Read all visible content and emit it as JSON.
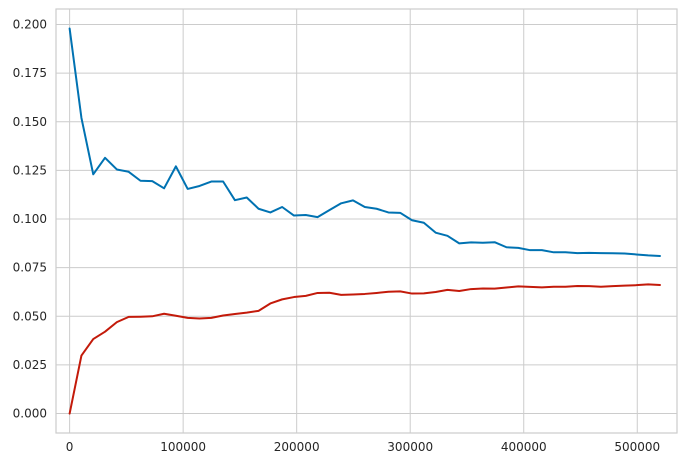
{
  "chart_data": {
    "type": "line",
    "title": "",
    "xlabel": "",
    "ylabel": "",
    "xlim": [
      -12000,
      535000
    ],
    "ylim": [
      -0.01,
      0.208
    ],
    "grid": true,
    "legend": "none",
    "x_ticks": [
      0,
      100000,
      200000,
      300000,
      400000,
      500000
    ],
    "x_tick_labels": [
      "0",
      "100000",
      "200000",
      "300000",
      "400000",
      "500000"
    ],
    "y_ticks": [
      0.0,
      0.025,
      0.05,
      0.075,
      0.1,
      0.125,
      0.15,
      0.175,
      0.2
    ],
    "y_tick_labels": [
      "0.000",
      "0.025",
      "0.050",
      "0.075",
      "0.100",
      "0.125",
      "0.150",
      "0.175",
      "0.200"
    ],
    "x": [
      0,
      10400,
      20800,
      31200,
      41600,
      52000,
      62400,
      72800,
      83200,
      93600,
      104000,
      114400,
      124800,
      135200,
      145600,
      156000,
      166400,
      176800,
      187200,
      197600,
      208000,
      218400,
      228800,
      239200,
      249600,
      260000,
      270400,
      280800,
      291200,
      301600,
      312000,
      322400,
      332800,
      343200,
      353600,
      364000,
      374400,
      384800,
      395200,
      405600,
      416000,
      426400,
      436800,
      447200,
      457600,
      468000,
      478400,
      488800,
      499200,
      509600,
      520000
    ],
    "series": [
      {
        "color": "#0072b2",
        "values": [
          0.198,
          0.152,
          0.123,
          0.1315,
          0.1255,
          0.1243,
          0.1197,
          0.1195,
          0.1158,
          0.1271,
          0.1155,
          0.117,
          0.1193,
          0.1193,
          0.1097,
          0.1111,
          0.1053,
          0.1034,
          0.1062,
          0.1018,
          0.1021,
          0.101,
          0.1046,
          0.1081,
          0.1096,
          0.1062,
          0.1053,
          0.1034,
          0.1032,
          0.0994,
          0.0981,
          0.093,
          0.0914,
          0.0875,
          0.088,
          0.0878,
          0.0881,
          0.0855,
          0.0852,
          0.084,
          0.084,
          0.0829,
          0.0829,
          0.0825,
          0.0826,
          0.0825,
          0.0824,
          0.0823,
          0.0818,
          0.0813,
          0.081
        ]
      },
      {
        "color": "#c31a0a",
        "values": [
          0.0,
          0.0298,
          0.0383,
          0.0421,
          0.047,
          0.0497,
          0.0498,
          0.05,
          0.0513,
          0.0503,
          0.0492,
          0.0489,
          0.0492,
          0.0504,
          0.0512,
          0.0519,
          0.0528,
          0.0566,
          0.0587,
          0.0599,
          0.0605,
          0.062,
          0.0621,
          0.061,
          0.0612,
          0.0615,
          0.062,
          0.0626,
          0.0628,
          0.0617,
          0.0618,
          0.0625,
          0.0636,
          0.063,
          0.064,
          0.0643,
          0.0642,
          0.0648,
          0.0654,
          0.0651,
          0.0649,
          0.0652,
          0.0652,
          0.0656,
          0.0655,
          0.0652,
          0.0655,
          0.0658,
          0.066,
          0.0664,
          0.0661
        ]
      }
    ]
  }
}
